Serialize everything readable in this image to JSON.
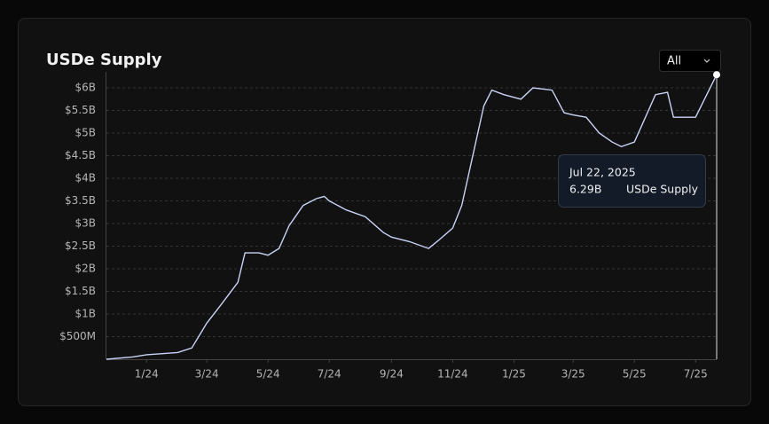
{
  "chart_data": {
    "type": "line",
    "title": "USDe Supply",
    "range_selector": "All",
    "x": [
      "2023-11-22",
      "2023-12-18",
      "2024-01-01",
      "2024-02-01",
      "2024-02-15",
      "2024-03-01",
      "2024-03-15",
      "2024-04-01",
      "2024-04-08",
      "2024-04-22",
      "2024-05-01",
      "2024-05-12",
      "2024-05-22",
      "2024-06-05",
      "2024-06-18",
      "2024-06-26",
      "2024-07-01",
      "2024-07-18",
      "2024-08-06",
      "2024-08-24",
      "2024-09-01",
      "2024-09-19",
      "2024-10-08",
      "2024-10-19",
      "2024-11-01",
      "2024-11-10",
      "2024-11-23",
      "2024-12-02",
      "2024-12-10",
      "2024-12-22",
      "2025-01-08",
      "2025-01-20",
      "2025-02-08",
      "2025-02-20",
      "2025-03-01",
      "2025-03-14",
      "2025-03-27",
      "2025-04-09",
      "2025-04-18",
      "2025-05-01",
      "2025-05-12",
      "2025-05-22",
      "2025-06-03",
      "2025-06-09",
      "2025-06-21",
      "2025-07-01",
      "2025-07-22"
    ],
    "series": [
      {
        "name": "USDe Supply",
        "color": "#c9d3f5",
        "values": [
          0,
          0.05,
          0.1,
          0.15,
          0.25,
          0.8,
          1.2,
          1.7,
          2.35,
          2.35,
          2.3,
          2.45,
          2.95,
          3.4,
          3.55,
          3.6,
          3.5,
          3.3,
          3.15,
          2.8,
          2.7,
          2.6,
          2.45,
          2.65,
          2.9,
          3.4,
          4.7,
          5.6,
          5.95,
          5.85,
          5.75,
          6.0,
          5.95,
          5.45,
          5.4,
          5.35,
          5.0,
          4.8,
          4.7,
          4.8,
          5.35,
          5.85,
          5.9,
          5.35,
          5.35,
          5.35,
          6.29
        ],
        "value_labels": [
          null,
          null,
          null,
          null,
          null,
          null,
          null,
          null,
          null,
          null,
          null,
          null,
          null,
          null,
          null,
          null,
          null,
          null,
          null,
          null,
          null,
          null,
          null,
          null,
          null,
          null,
          null,
          null,
          null,
          null,
          null,
          null,
          null,
          null,
          null,
          null,
          null,
          null,
          null,
          null,
          null,
          null,
          null,
          null,
          null,
          null,
          "6.29B"
        ]
      }
    ],
    "tooltip": {
      "date": "Jul 22, 2025"
    },
    "xlim": [
      "2023-11-22",
      "2025-07-22"
    ],
    "xticks": [
      {
        "value": "2024-01-01",
        "label": "1/24"
      },
      {
        "value": "2024-03-01",
        "label": "3/24"
      },
      {
        "value": "2024-05-01",
        "label": "5/24"
      },
      {
        "value": "2024-07-01",
        "label": "7/24"
      },
      {
        "value": "2024-09-01",
        "label": "9/24"
      },
      {
        "value": "2024-11-01",
        "label": "11/24"
      },
      {
        "value": "2025-01-01",
        "label": "1/25"
      },
      {
        "value": "2025-03-01",
        "label": "3/25"
      },
      {
        "value": "2025-05-01",
        "label": "5/25"
      },
      {
        "value": "2025-07-01",
        "label": "7/25"
      }
    ],
    "ylim": [
      0,
      6.35
    ],
    "yticks": [
      {
        "value": 0.5,
        "label": "$500M"
      },
      {
        "value": 1,
        "label": "$1B"
      },
      {
        "value": 1.5,
        "label": "$1.5B"
      },
      {
        "value": 2,
        "label": "$2B"
      },
      {
        "value": 2.5,
        "label": "$2.5B"
      },
      {
        "value": 3,
        "label": "$3B"
      },
      {
        "value": 3.5,
        "label": "$3.5B"
      },
      {
        "value": 4,
        "label": "$4B"
      },
      {
        "value": 4.5,
        "label": "$4.5B"
      },
      {
        "value": 5,
        "label": "$5B"
      },
      {
        "value": 5.5,
        "label": "$5.5B"
      },
      {
        "value": 6,
        "label": "$6B"
      }
    ],
    "grid": true
  }
}
